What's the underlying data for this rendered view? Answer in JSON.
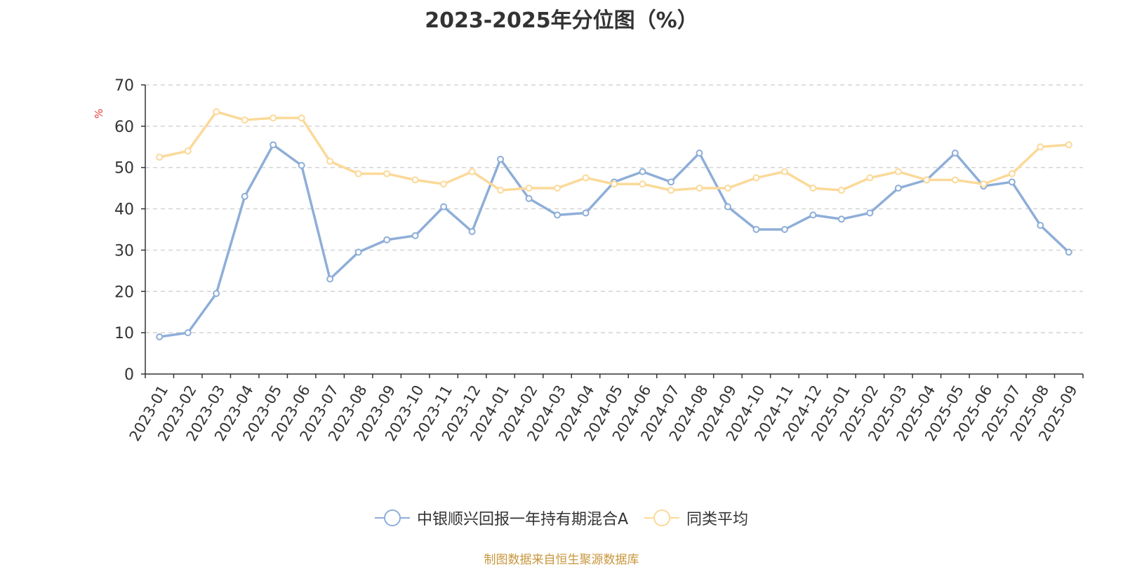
{
  "chart_data": {
    "type": "line",
    "title": "2023-2025年分位图（%）",
    "ylabel": "%",
    "ylim": [
      0,
      70
    ],
    "yticks": [
      0,
      10,
      20,
      30,
      40,
      50,
      60,
      70
    ],
    "grid": true,
    "legend_position": "bottom",
    "x": [
      "2023-01",
      "2023-02",
      "2023-03",
      "2023-04",
      "2023-05",
      "2023-06",
      "2023-07",
      "2023-08",
      "2023-09",
      "2023-10",
      "2023-11",
      "2023-12",
      "2024-01",
      "2024-02",
      "2024-03",
      "2024-04",
      "2024-05",
      "2024-06",
      "2024-07",
      "2024-08",
      "2024-09",
      "2024-10",
      "2024-11",
      "2024-12",
      "2025-01",
      "2025-02",
      "2025-03",
      "2025-04",
      "2025-05",
      "2025-06",
      "2025-07",
      "2025-08",
      "2025-09"
    ],
    "series": [
      {
        "name": "中银顺兴回报一年持有期混合A",
        "color": "#8eaed8",
        "values": [
          9,
          10,
          19.5,
          43,
          55.5,
          50.5,
          23,
          29.5,
          32.5,
          33.5,
          40.5,
          34.5,
          52,
          42.5,
          38.5,
          39,
          46.5,
          49,
          46.5,
          53.5,
          40.5,
          35,
          35,
          38.5,
          37.5,
          39,
          45,
          47,
          53.5,
          45.5,
          46.5,
          36,
          29.5
        ]
      },
      {
        "name": "同类平均",
        "color": "#fbd999",
        "values": [
          52.5,
          54,
          63.5,
          61.5,
          62,
          62,
          51.5,
          48.5,
          48.5,
          47,
          46,
          49,
          44.5,
          45,
          45,
          47.5,
          46,
          46,
          44.5,
          45,
          45,
          47.5,
          49,
          45,
          44.5,
          47.5,
          49,
          47,
          47,
          46,
          48.5,
          55,
          55.5
        ]
      }
    ]
  },
  "source_note": "制图数据来自恒生聚源数据库"
}
